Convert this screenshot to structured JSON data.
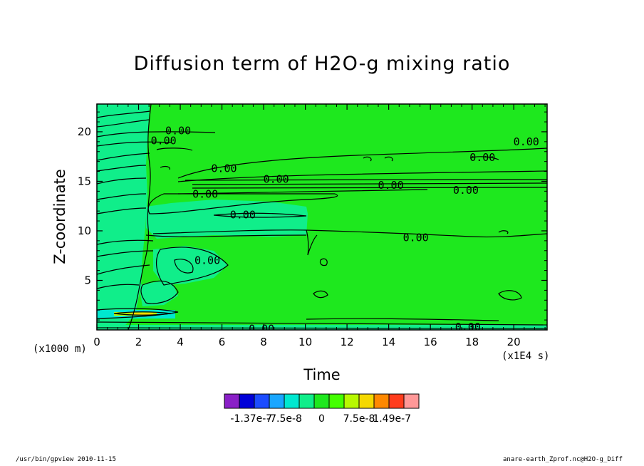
{
  "chart_data": {
    "type": "heatmap",
    "title": "Diffusion term of H2O-g mixing ratio",
    "xlabel": "Time",
    "ylabel": "Z-coordinate",
    "x_unit": "(x1E4 s)",
    "y_unit": "(x1000 m)",
    "xlim": [
      0,
      21.6
    ],
    "ylim": [
      0,
      22.8
    ],
    "x_ticks": [
      "0",
      "2",
      "4",
      "6",
      "8",
      "10",
      "12",
      "14",
      "16",
      "18",
      "20"
    ],
    "x_tick_values": [
      0,
      2,
      4,
      6,
      8,
      10,
      12,
      14,
      16,
      18,
      20
    ],
    "y_ticks": [
      "5",
      "10",
      "15",
      "20"
    ],
    "y_tick_values": [
      5,
      10,
      15,
      20
    ],
    "grid": false,
    "contour_labels": [
      {
        "text": "0.00",
        "x": 3.9,
        "y": 20.1
      },
      {
        "text": "0.00",
        "x": 3.2,
        "y": 19.1
      },
      {
        "text": "0.00",
        "x": 20.6,
        "y": 19.0
      },
      {
        "text": "0.00",
        "x": 18.5,
        "y": 17.4
      },
      {
        "text": "0.00",
        "x": 6.1,
        "y": 16.3
      },
      {
        "text": "0.00",
        "x": 8.6,
        "y": 15.2
      },
      {
        "text": "0.00",
        "x": 14.1,
        "y": 14.6
      },
      {
        "text": "0.00",
        "x": 17.7,
        "y": 14.1
      },
      {
        "text": "0.00",
        "x": 5.2,
        "y": 13.7
      },
      {
        "text": "0.00",
        "x": 7.0,
        "y": 11.6
      },
      {
        "text": "0.00",
        "x": 15.3,
        "y": 9.3
      },
      {
        "text": "0.00",
        "x": 5.3,
        "y": 7.0
      },
      {
        "text": "0.00",
        "x": 17.8,
        "y": 0.3
      },
      {
        "text": "0.00",
        "x": 7.9,
        "y": 0.1
      }
    ],
    "colorbar": {
      "colors": [
        "#8a1fc7",
        "#0000d8",
        "#1c4cff",
        "#19a6ff",
        "#00e8d0",
        "#10ee8a",
        "#1ee81e",
        "#44ff00",
        "#b8f800",
        "#f4d800",
        "#ff8800",
        "#ff3c1c",
        "#ff9898"
      ],
      "labels": [
        "-1.37e-7",
        "-7.5e-8",
        "0",
        "7.5e-8",
        "1.49e-7"
      ],
      "label_positions": [
        1.8,
        4,
        6.5,
        9,
        11.2
      ]
    }
  },
  "footer": {
    "left": "/usr/bin/gpview   2010-11-15",
    "right": "anare-earth_Zprof.nc@H2O-g_Diff"
  }
}
